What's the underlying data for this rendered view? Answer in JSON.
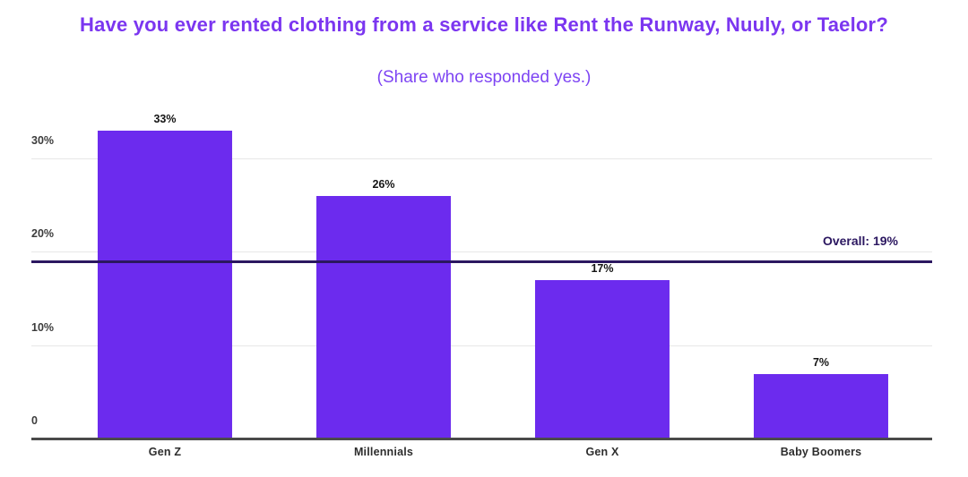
{
  "header": {
    "title": "Have you ever rented clothing from a service like Rent the Runway, Nuuly, or Taelor?",
    "subtitle": "(Share who responded yes.)"
  },
  "chart_data": {
    "type": "bar",
    "title": "Have you ever rented clothing from a service like Rent the Runway, Nuuly, or Taelor?",
    "subtitle": "(Share who responded yes.)",
    "categories": [
      "Gen Z",
      "Millennials",
      "Gen X",
      "Baby Boomers"
    ],
    "values": [
      33,
      26,
      17,
      7
    ],
    "value_labels": [
      "33%",
      "26%",
      "17%",
      "7%"
    ],
    "xlabel": "",
    "ylabel": "",
    "ylim": [
      0,
      36
    ],
    "yticks": [
      {
        "value": 0,
        "label": "0"
      },
      {
        "value": 10,
        "label": "10%"
      },
      {
        "value": 20,
        "label": "20%"
      },
      {
        "value": 30,
        "label": "30%"
      }
    ],
    "grid": true,
    "legend": null,
    "reference_line": {
      "value": 19,
      "label": "Overall: 19%"
    },
    "colors": {
      "bar": "#6C2BEE",
      "title": "#7B36F0",
      "subtitle": "#7D44F3",
      "reference": "#2B1760",
      "gridline": "#E7E7E7",
      "axis": "#4A4A4A",
      "value_label": "#141414",
      "tick_label": "#3C3C3C",
      "x_label": "#2D2D2D"
    }
  }
}
